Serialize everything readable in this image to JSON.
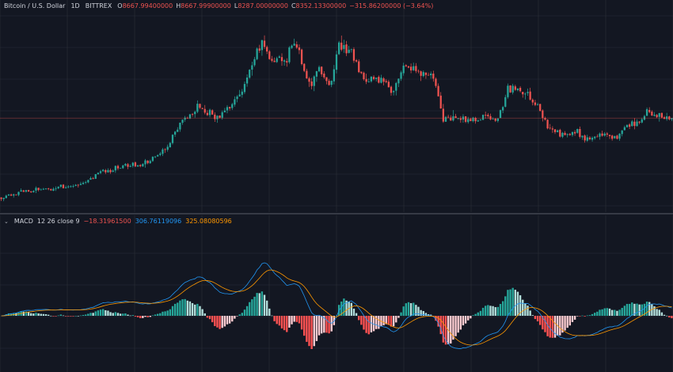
{
  "header": {
    "symbol": "Bitcoin / U.S. Dollar",
    "interval": "1D",
    "exchange": "BITTREX",
    "o_label": "O",
    "o_value": "8667.99400000",
    "h_label": "H",
    "h_value": "8667.99900000",
    "l_label": "L",
    "l_value": "8287.00000000",
    "c_label": "C",
    "c_value": "8352.13300000",
    "change": "−315.86200000 (−3.64%)"
  },
  "macd_legend": {
    "chevron": "⌄",
    "name": "MACD",
    "params": "12 26 close 9",
    "histogram_value": "−18.31961500",
    "macd_value": "306.76119096",
    "signal_value": "325.08080596"
  },
  "colors": {
    "background": "#131722",
    "grid": "#2a2e39",
    "up": "#26a69a",
    "down": "#ef5350",
    "hist_up_strong": "#26a69a",
    "hist_up_weak": "#b2dfdb",
    "hist_down_strong": "#ff5252",
    "hist_down_weak": "#ffcdd2",
    "macd_line": "#2196f3",
    "signal_line": "#ff9800",
    "pane_separator": "#434651",
    "last_price_line": "#ef5350"
  },
  "chart_data": {
    "type": "candlestick",
    "anchor_points": [
      [
        0,
        4500
      ],
      [
        10,
        4800
      ],
      [
        22,
        4950
      ],
      [
        32,
        5200
      ],
      [
        40,
        5700
      ],
      [
        48,
        6000
      ],
      [
        58,
        6150
      ],
      [
        66,
        6800
      ],
      [
        72,
        8200
      ],
      [
        80,
        8850
      ],
      [
        88,
        8450
      ],
      [
        96,
        9400
      ],
      [
        102,
        11300
      ],
      [
        105,
        12300
      ],
      [
        108,
        11200
      ],
      [
        114,
        11000
      ],
      [
        118,
        12200
      ],
      [
        124,
        10000
      ],
      [
        128,
        10800
      ],
      [
        132,
        9900
      ],
      [
        136,
        11800
      ],
      [
        140,
        11700
      ],
      [
        146,
        10200
      ],
      [
        152,
        10400
      ],
      [
        158,
        9700
      ],
      [
        162,
        10900
      ],
      [
        168,
        10500
      ],
      [
        174,
        10400
      ],
      [
        178,
        8400
      ],
      [
        184,
        8350
      ],
      [
        190,
        8250
      ],
      [
        196,
        8300
      ],
      [
        200,
        8250
      ],
      [
        204,
        9850
      ],
      [
        210,
        9600
      ],
      [
        216,
        8900
      ],
      [
        220,
        7900
      ],
      [
        226,
        7550
      ],
      [
        232,
        7600
      ],
      [
        236,
        7300
      ],
      [
        242,
        7550
      ],
      [
        248,
        7450
      ],
      [
        254,
        8100
      ],
      [
        260,
        8500
      ],
      [
        266,
        8500
      ],
      [
        270,
        8352
      ]
    ],
    "price_range": [
      3800,
      13300
    ],
    "bars": 271,
    "last_close": 8352.133,
    "macd": {
      "fast": 12,
      "slow": 26,
      "signal": 9,
      "source": "close"
    }
  }
}
